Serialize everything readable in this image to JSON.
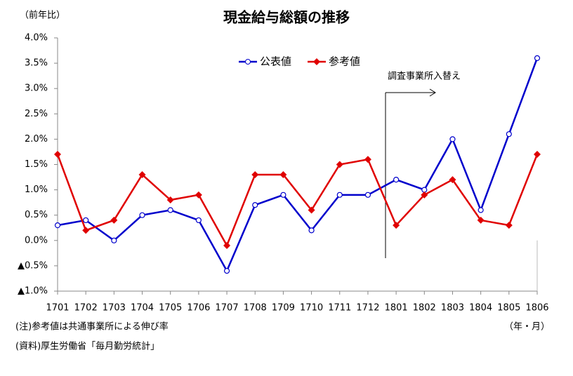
{
  "chart_data": {
    "type": "line",
    "title": "現金給与総額の推移",
    "y_label": "（前年比）",
    "x_label": "（年・月）",
    "annotation": "調査事業所入替え",
    "notes": [
      "(注)参考値は共通事業所による伸び率",
      "(資料)厚生労働省「毎月勤労統計」"
    ],
    "categories": [
      "1701",
      "1702",
      "1703",
      "1704",
      "1705",
      "1706",
      "1707",
      "1708",
      "1709",
      "1710",
      "1711",
      "1712",
      "1801",
      "1802",
      "1803",
      "1804",
      "1805",
      "1806"
    ],
    "series": [
      {
        "name": "公表値",
        "color": "#0000cc",
        "marker": "circle",
        "values": [
          0.3,
          0.4,
          0.0,
          0.5,
          0.6,
          0.4,
          -0.6,
          0.7,
          0.9,
          0.2,
          0.9,
          0.9,
          1.2,
          1.0,
          2.0,
          0.6,
          2.1,
          3.6
        ]
      },
      {
        "name": "参考値",
        "color": "#e00000",
        "marker": "diamond",
        "values": [
          1.7,
          0.2,
          0.4,
          1.3,
          0.8,
          0.9,
          -0.1,
          1.3,
          1.3,
          0.6,
          1.5,
          1.6,
          0.3,
          0.9,
          1.2,
          0.4,
          0.3,
          1.7
        ]
      }
    ],
    "ylim": [
      -1.0,
      4.0
    ],
    "yticks": [
      {
        "value": -1.0,
        "label": "▲1.0%"
      },
      {
        "value": -0.5,
        "label": "▲0.5%"
      },
      {
        "value": 0.0,
        "label": "0.0%"
      },
      {
        "value": 0.5,
        "label": "0.5%"
      },
      {
        "value": 1.0,
        "label": "1.0%"
      },
      {
        "value": 1.5,
        "label": "1.5%"
      },
      {
        "value": 2.0,
        "label": "2.0%"
      },
      {
        "value": 2.5,
        "label": "2.5%"
      },
      {
        "value": 3.0,
        "label": "3.0%"
      },
      {
        "value": 3.5,
        "label": "3.5%"
      },
      {
        "value": 4.0,
        "label": "4.0%"
      }
    ],
    "grid": false,
    "legend": "top"
  }
}
